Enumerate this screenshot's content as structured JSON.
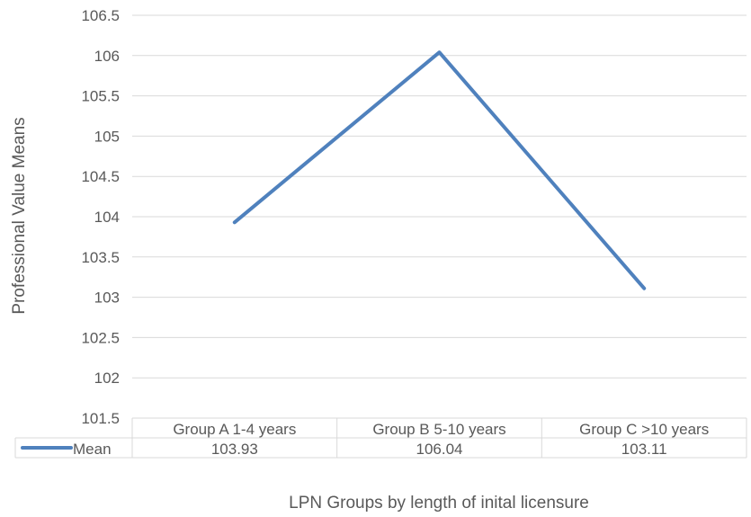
{
  "chart_data": {
    "type": "line",
    "title": "",
    "xlabel": "LPN Groups by length of inital licensure",
    "ylabel": "Professional Value Means",
    "categories": [
      "Group A 1-4 years",
      "Group B 5-10 years",
      "Group C >10 years"
    ],
    "series": [
      {
        "name": "Mean",
        "values": [
          103.93,
          106.04,
          103.11
        ],
        "color": "#4F81BD"
      }
    ],
    "value_labels": [
      "103.93",
      "106.04",
      "103.11"
    ],
    "ylim": [
      101.5,
      106.5
    ],
    "yticks": [
      "101.5",
      "102",
      "102.5",
      "103",
      "103.5",
      "104",
      "104.5",
      "105",
      "105.5",
      "106",
      "106.5"
    ],
    "ytick_values": [
      101.5,
      102,
      102.5,
      103,
      103.5,
      104,
      104.5,
      105,
      105.5,
      106,
      106.5
    ],
    "grid": true,
    "legend": "data-table",
    "colors": {
      "gridline": "#D9D9D9",
      "table_border": "#D9D9D9",
      "text": "#595959"
    }
  }
}
